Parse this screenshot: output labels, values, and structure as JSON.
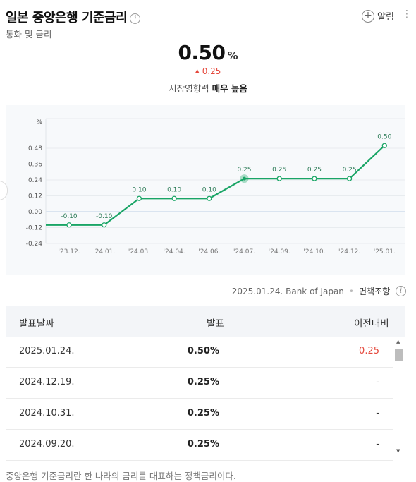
{
  "header": {
    "title": "일본 중앙은행 기준금리",
    "info_glyph": "i",
    "subtitle": "통화 및 금리",
    "alarm_label": "알림",
    "alarm_glyph": "+",
    "more_glyph": "⋮"
  },
  "summary": {
    "value": "0.50",
    "unit": "%",
    "change_arrow": "▲",
    "change": "0.25",
    "impact_label": "시장영향력",
    "impact_value": "매우 높음"
  },
  "chart_data": {
    "type": "line",
    "ylabel": "%",
    "ylim": [
      -0.24,
      0.6
    ],
    "y_ticks": [
      -0.24,
      -0.12,
      0.0,
      0.12,
      0.24,
      0.36,
      0.48
    ],
    "y_tick_labels": [
      "-0.24",
      "-0.12",
      "0.00",
      "0.12",
      "0.24",
      "0.36",
      "0.48"
    ],
    "x_tick_labels": [
      "'23.12.",
      "'24.01.",
      "'24.03.",
      "'24.04.",
      "'24.06.",
      "'24.07.",
      "'24.09.",
      "'24.10.",
      "'24.12.",
      "'25.01."
    ],
    "data_labels": [
      "-0.10",
      "-0.10",
      "0.10",
      "0.10",
      "0.10",
      "0.25",
      "0.25",
      "0.25",
      "0.25",
      "0.50"
    ],
    "values": [
      -0.1,
      -0.1,
      0.1,
      0.1,
      0.1,
      0.25,
      0.25,
      0.25,
      0.25,
      0.5
    ],
    "highlight_index": 5,
    "line_color": "#1aa566",
    "grid": true
  },
  "source": {
    "date": "2025.01.24.",
    "name": "Bank of Japan",
    "separator": "•",
    "disclaimer": "면책조항",
    "info_glyph": "i"
  },
  "table": {
    "headers": [
      "발표날짜",
      "발표",
      "이전대비"
    ],
    "rows": [
      {
        "date": "2025.01.24.",
        "value": "0.50%",
        "change": "0.25"
      },
      {
        "date": "2024.12.19.",
        "value": "0.25%",
        "change": "-"
      },
      {
        "date": "2024.10.31.",
        "value": "0.25%",
        "change": "-"
      },
      {
        "date": "2024.09.20.",
        "value": "0.25%",
        "change": "-"
      }
    ],
    "scroll_up": "▲",
    "scroll_down": "▼"
  },
  "footnote": "중앙은행 기준금리란 한 나라의 금리를 대표하는 정책금리이다.",
  "colors": {
    "accent": "#1aa566",
    "up": "#e5483c"
  }
}
